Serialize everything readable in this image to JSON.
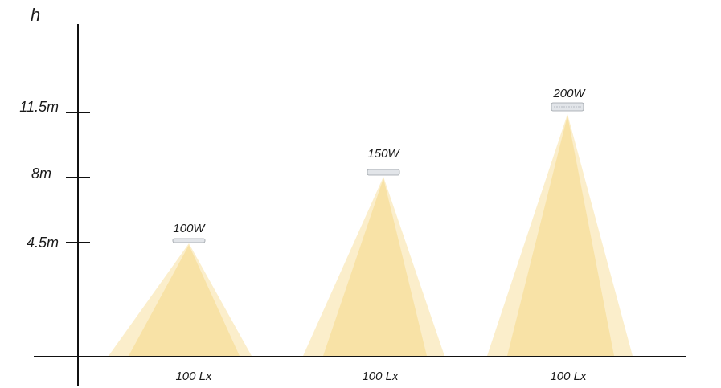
{
  "axis": {
    "y_label": "h",
    "ticks": [
      {
        "label": "4.5m",
        "value": 4.5
      },
      {
        "label": "8m",
        "value": 8
      },
      {
        "label": "11.5m",
        "value": 11.5
      }
    ]
  },
  "fixtures": [
    {
      "power": "100W",
      "height_m": 4.5,
      "illuminance": "100 Lx"
    },
    {
      "power": "150W",
      "height_m": 8,
      "illuminance": "100 Lx"
    },
    {
      "power": "200W",
      "height_m": 11.5,
      "illuminance": "100 Lx"
    }
  ],
  "colors": {
    "axis": "#111111",
    "beam_outer": "#fbeecb",
    "beam_inner": "#f8e2a6",
    "fixture": "#d9dde2"
  }
}
